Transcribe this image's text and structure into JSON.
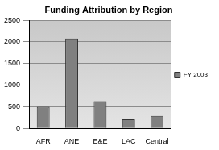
{
  "chart_data": {
    "type": "bar",
    "title": "Funding Attribution by Region",
    "categories": [
      "AFR",
      "ANE",
      "E&E",
      "LAC",
      "Central"
    ],
    "series": [
      {
        "name": "FY 2003",
        "color": "#808080",
        "values": [
          500,
          2080,
          630,
          210,
          290
        ]
      }
    ],
    "ylim": [
      0,
      2500
    ],
    "yticks": [
      0,
      500,
      1000,
      1500,
      2000,
      2500
    ],
    "grid": true,
    "legend": "right"
  }
}
